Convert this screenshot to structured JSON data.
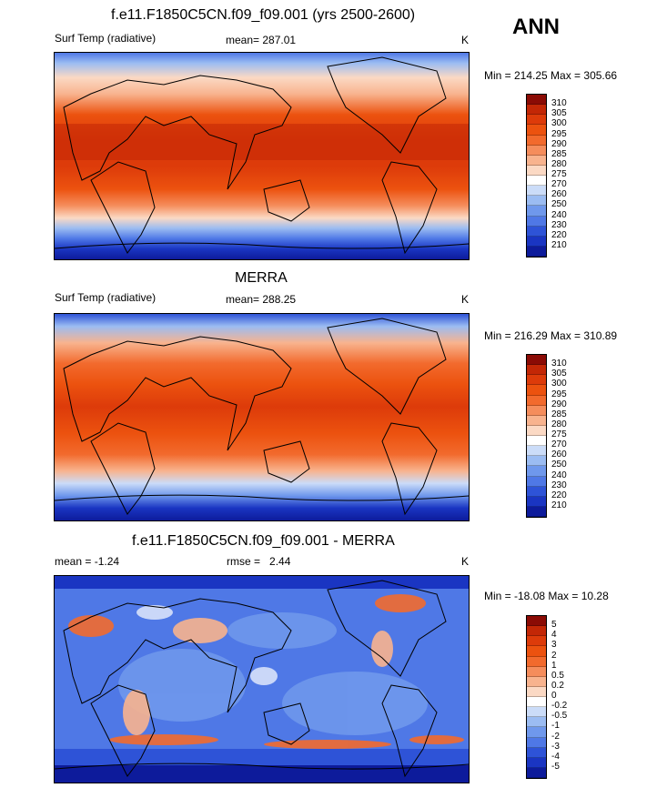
{
  "season": "ANN",
  "panels": [
    {
      "title": "f.e11.F1850C5CN.f09_f09.001 (yrs 2500-2600)",
      "left_label": "Surf Temp (radiative)",
      "stat_label": "mean=",
      "stat_value": "287.01",
      "units": "K",
      "minmax": "Min = 214.25 Max = 305.66",
      "colorbar": {
        "ticks": [
          "310",
          "305",
          "300",
          "295",
          "290",
          "285",
          "280",
          "275",
          "270",
          "260",
          "250",
          "240",
          "230",
          "220",
          "210"
        ],
        "colors": [
          "#8b0b05",
          "#c32706",
          "#dd3b0a",
          "#ec520f",
          "#f26a2d",
          "#f58d5c",
          "#f8b38e",
          "#fbd9c4",
          "#ffffff",
          "#cbdcf8",
          "#9bbcf2",
          "#6f98ec",
          "#4f78e6",
          "#2e53d7",
          "#1a35c2",
          "#0d1b9b"
        ]
      }
    },
    {
      "title": "MERRA",
      "left_label": "Surf Temp (radiative)",
      "stat_label": "mean=",
      "stat_value": "288.25",
      "units": "K",
      "minmax": "Min = 216.29 Max = 310.89",
      "colorbar": {
        "ticks": [
          "310",
          "305",
          "300",
          "295",
          "290",
          "285",
          "280",
          "275",
          "270",
          "260",
          "250",
          "240",
          "230",
          "220",
          "210"
        ],
        "colors": [
          "#8b0b05",
          "#c32706",
          "#dd3b0a",
          "#ec520f",
          "#f26a2d",
          "#f58d5c",
          "#f8b38e",
          "#fbd9c4",
          "#ffffff",
          "#cbdcf8",
          "#9bbcf2",
          "#6f98ec",
          "#4f78e6",
          "#2e53d7",
          "#1a35c2",
          "#0d1b9b"
        ]
      }
    },
    {
      "title": "f.e11.F1850C5CN.f09_f09.001 - MERRA",
      "left_label": "mean =  -1.24",
      "stat_label": "rmse =",
      "stat_value": "2.44",
      "units": "K",
      "minmax": "Min = -18.08 Max =  10.28",
      "colorbar": {
        "ticks": [
          "5",
          "4",
          "3",
          "2",
          "1",
          "0.5",
          "0.2",
          "0",
          "-0.2",
          "-0.5",
          "-1",
          "-2",
          "-3",
          "-4",
          "-5"
        ],
        "colors": [
          "#8b0b05",
          "#c32706",
          "#dd3b0a",
          "#ec520f",
          "#f26a2d",
          "#f58d5c",
          "#f8b38e",
          "#fbd9c4",
          "#ffffff",
          "#cbdcf8",
          "#9bbcf2",
          "#6f98ec",
          "#4f78e6",
          "#2e53d7",
          "#1a35c2",
          "#0d1b9b"
        ]
      }
    }
  ]
}
